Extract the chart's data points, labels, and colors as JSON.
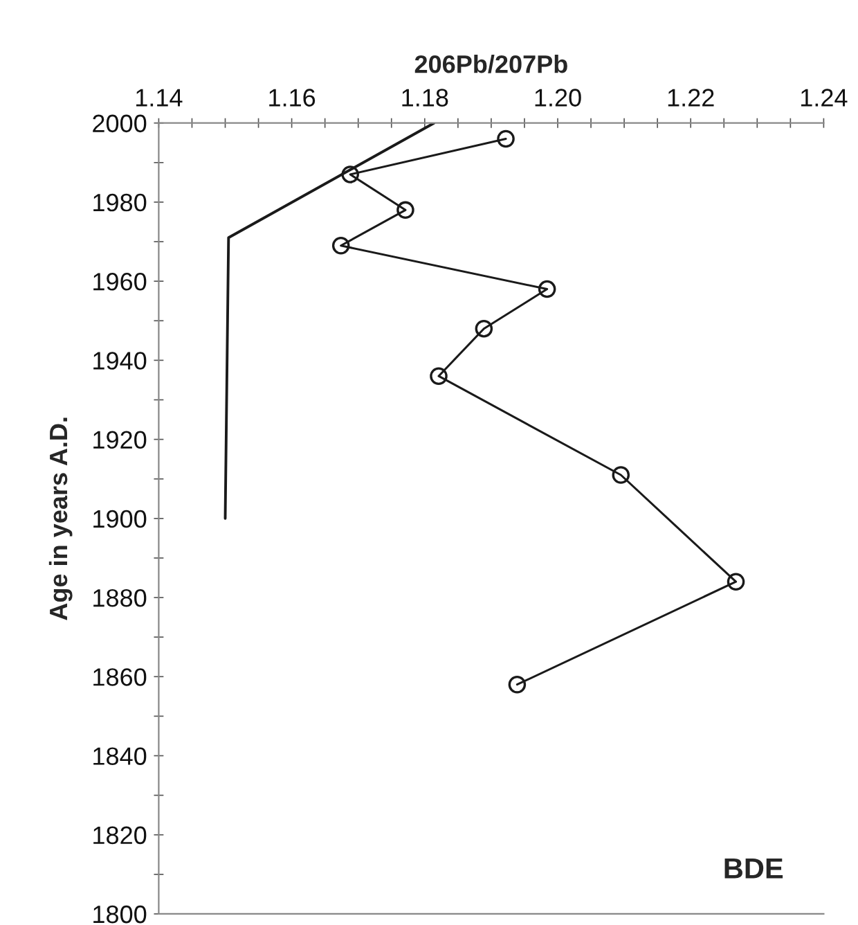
{
  "chart_data": {
    "type": "line",
    "xlabel": "206Pb/207Pb",
    "ylabel": "Age in years A.D.",
    "xlim": [
      1.14,
      1.24
    ],
    "ylim": [
      1800,
      2000
    ],
    "xticks": [
      1.14,
      {
        "value": 1.145,
        "label": null
      },
      {
        "value": 1.15,
        "label": null
      },
      {
        "value": 1.155,
        "label": null
      },
      1.16,
      {
        "value": 1.165,
        "label": null
      },
      {
        "value": 1.17,
        "label": null
      },
      {
        "value": 1.175,
        "label": null
      },
      1.18,
      {
        "value": 1.185,
        "label": null
      },
      {
        "value": 1.19,
        "label": null
      },
      {
        "value": 1.195,
        "label": null
      },
      {
        "value": 1.2,
        "label": "1.20"
      },
      {
        "value": 1.205,
        "label": null
      },
      {
        "value": 1.21,
        "label": null
      },
      {
        "value": 1.215,
        "label": null
      },
      1.22,
      {
        "value": 1.225,
        "label": null
      },
      {
        "value": 1.23,
        "label": null
      },
      {
        "value": 1.235,
        "label": null
      },
      1.24
    ],
    "yticks": [
      1800,
      {
        "value": 1810,
        "label": null
      },
      1820,
      {
        "value": 1830,
        "label": null
      },
      1840,
      {
        "value": 1850,
        "label": null
      },
      1860,
      {
        "value": 1870,
        "label": null
      },
      1880,
      {
        "value": 1890,
        "label": null
      },
      1900,
      {
        "value": 1910,
        "label": null
      },
      1920,
      {
        "value": 1930,
        "label": null
      },
      1940,
      {
        "value": 1950,
        "label": null
      },
      1960,
      {
        "value": 1970,
        "label": null
      },
      1980,
      {
        "value": 1990,
        "label": null
      },
      2000
    ],
    "grid": false,
    "series": [
      {
        "color": "#1a1a1a",
        "marker": "circle",
        "x": [
          1.1922,
          1.1688,
          1.1771,
          1.1674,
          1.1984,
          1.1889,
          1.1821,
          1.2095,
          1.2268,
          1.1939
        ],
        "values": [
          1996,
          1987,
          1978,
          1969,
          1958,
          1948,
          1936,
          1911,
          1884,
          1858
        ]
      },
      {
        "color": "#1a1a1a",
        "marker": "none",
        "x": [
          1.1814,
          1.1505,
          1.15
        ],
        "values": [
          2000,
          1971,
          1900
        ]
      }
    ],
    "annotations": [
      "BDE"
    ]
  }
}
